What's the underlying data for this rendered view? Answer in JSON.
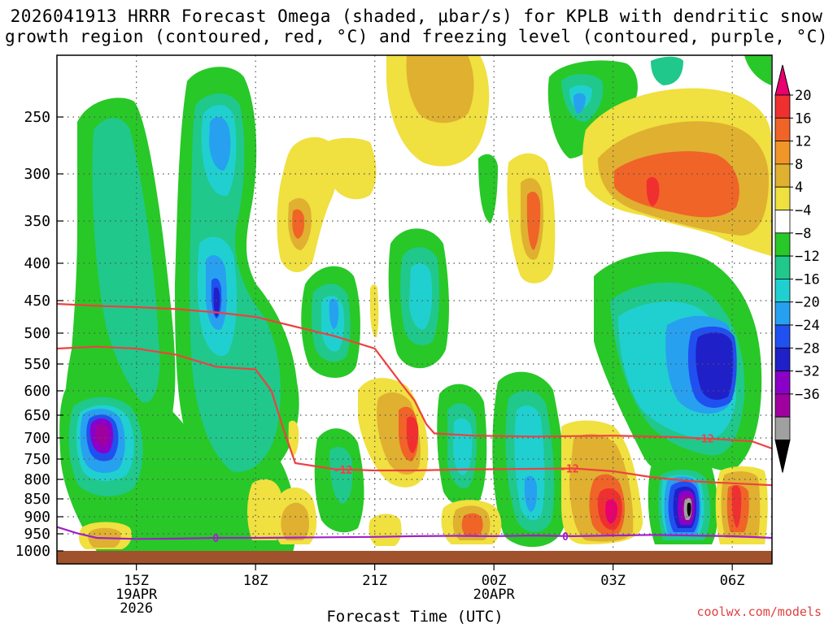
{
  "title": {
    "line1": "2026041913 HRRR Forecast Omega (shaded, μbar/s) for KPLB with dendritic snow",
    "line2": "growth region (contoured, red, °C) and freezing level (contoured, purple, °C)"
  },
  "credit": "coolwx.com/models",
  "chart_data": {
    "type": "time-height contour",
    "title": "2026041913 HRRR Forecast Omega (shaded, μbar/s) for KPLB with dendritic snow growth region (contoured, red, °C) and freezing level (contoured, purple, °C)",
    "xlabel": "Forecast Time (UTC)",
    "ylabel": "",
    "x_range_hours": [
      13,
      31
    ],
    "y_range_hpa": [
      200,
      1000
    ],
    "x_ticks": [
      {
        "hour": 15,
        "label": "15Z",
        "sub": [
          "19APR",
          "2026"
        ]
      },
      {
        "hour": 18,
        "label": "18Z",
        "sub": []
      },
      {
        "hour": 21,
        "label": "21Z",
        "sub": []
      },
      {
        "hour": 24,
        "label": "00Z",
        "sub": [
          "20APR"
        ]
      },
      {
        "hour": 27,
        "label": "03Z",
        "sub": []
      },
      {
        "hour": 30,
        "label": "06Z",
        "sub": []
      }
    ],
    "y_ticks": [
      250,
      300,
      350,
      400,
      450,
      500,
      550,
      600,
      650,
      700,
      750,
      800,
      850,
      900,
      950,
      1000
    ],
    "colorbar": {
      "labels": [
        "20",
        "16",
        "12",
        "8",
        "4",
        "−4",
        "−8",
        "−12",
        "−16",
        "−20",
        "−24",
        "−28",
        "−32",
        "−36"
      ],
      "colors": [
        "#e8006e",
        "#f03030",
        "#f06428",
        "#f09628",
        "#e0b030",
        "#f0e040",
        "#ffffff",
        "#28c828",
        "#20c88c",
        "#20d0d0",
        "#28a0f0",
        "#2050f0",
        "#2020c8",
        "#8a00c8",
        "#a000a0",
        "#a0a0a0",
        "#000000"
      ]
    },
    "contours": [
      {
        "label": "-12",
        "color": "#f04040",
        "points": [
          [
            13.0,
            455
          ],
          [
            14.0,
            458
          ],
          [
            15.0,
            460
          ],
          [
            16.0,
            463
          ],
          [
            17.0,
            468
          ],
          [
            18.0,
            475
          ],
          [
            19.0,
            490
          ],
          [
            20.0,
            505
          ],
          [
            21.0,
            525
          ],
          [
            21.6,
            580
          ],
          [
            22.0,
            620
          ],
          [
            22.3,
            670
          ],
          [
            22.5,
            690
          ],
          [
            23.5,
            695
          ],
          [
            25.0,
            697
          ],
          [
            27.0,
            695
          ],
          [
            28.5,
            698
          ],
          [
            29.5,
            702
          ],
          [
            30.5,
            708
          ],
          [
            31.0,
            725
          ]
        ],
        "label_hour": 29.3
      },
      {
        "label": "-12",
        "color": "#f04040",
        "points": [
          [
            13.0,
            525
          ],
          [
            14.0,
            522
          ],
          [
            15.0,
            525
          ],
          [
            16.0,
            535
          ],
          [
            17.0,
            555
          ],
          [
            18.0,
            560
          ],
          [
            18.4,
            600
          ],
          [
            18.7,
            680
          ],
          [
            19.0,
            760
          ],
          [
            20.0,
            775
          ],
          [
            21.0,
            778
          ],
          [
            22.0,
            778
          ],
          [
            23.0,
            776
          ],
          [
            24.0,
            775
          ],
          [
            25.0,
            774
          ],
          [
            26.0,
            773
          ],
          [
            27.0,
            780
          ],
          [
            28.0,
            795
          ],
          [
            29.0,
            805
          ],
          [
            30.0,
            810
          ],
          [
            31.0,
            815
          ]
        ],
        "label_hour": 20.2,
        "label2_hour": 25.9
      },
      {
        "label": "0",
        "color": "#a020c8",
        "points": [
          [
            13.0,
            930
          ],
          [
            13.5,
            948
          ],
          [
            14.0,
            962
          ],
          [
            15.0,
            965
          ],
          [
            16.0,
            964
          ],
          [
            17.0,
            962
          ],
          [
            18.0,
            962
          ],
          [
            19.0,
            961
          ],
          [
            20.0,
            960
          ],
          [
            21.0,
            959
          ],
          [
            22.0,
            957
          ],
          [
            23.0,
            956
          ],
          [
            24.0,
            957
          ],
          [
            25.0,
            955
          ],
          [
            26.0,
            957
          ],
          [
            27.0,
            955
          ],
          [
            28.0,
            953
          ],
          [
            29.0,
            955
          ],
          [
            30.0,
            957
          ],
          [
            31.0,
            962
          ]
        ],
        "label_hour": 17.0,
        "label2_hour": 25.8
      }
    ]
  }
}
